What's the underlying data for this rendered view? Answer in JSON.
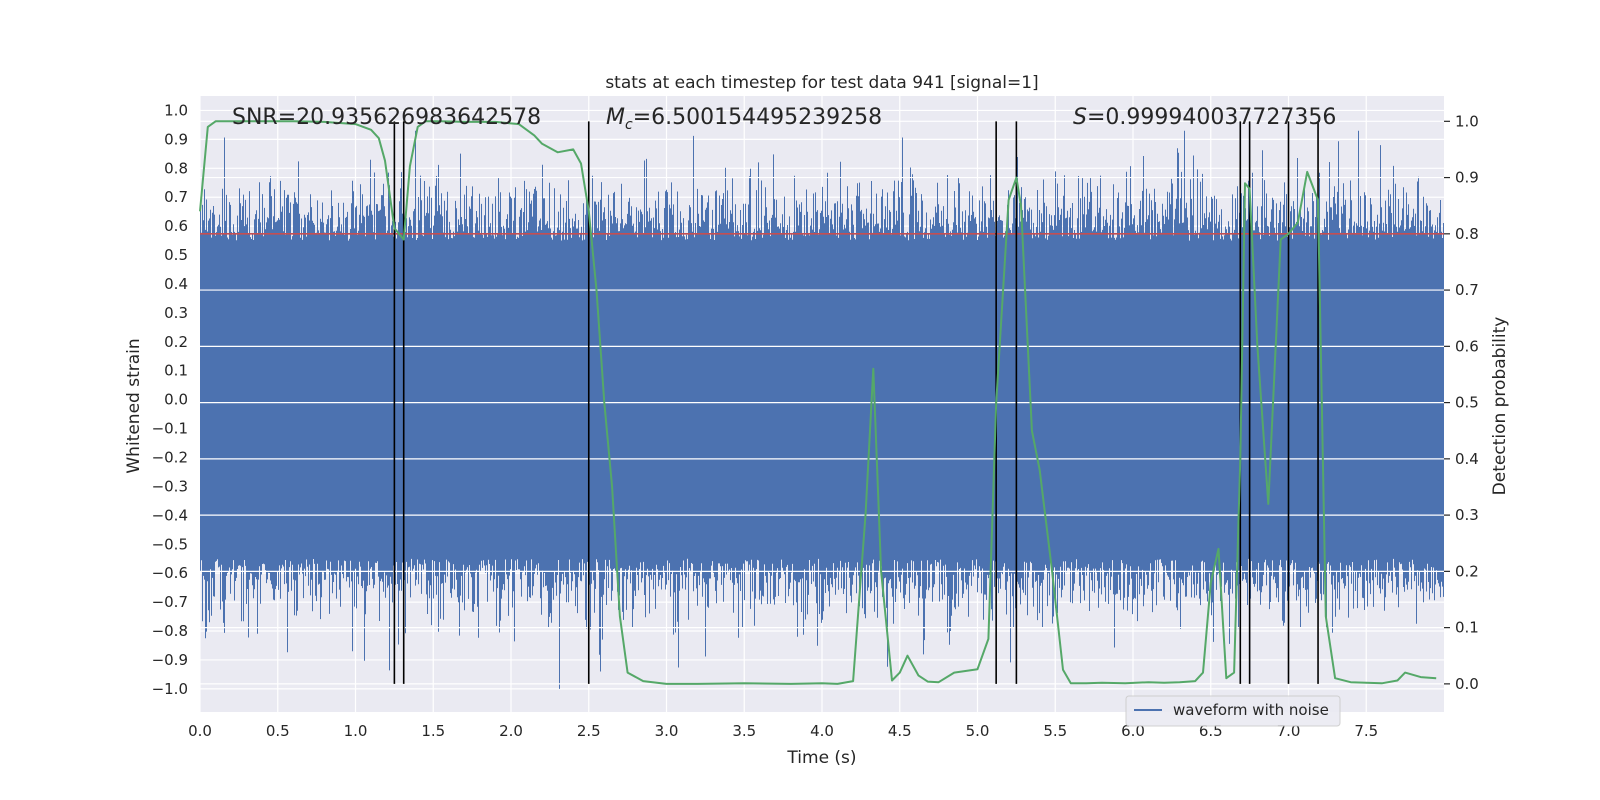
{
  "chart_data": {
    "type": "line",
    "title": "stats at each timestep for test data 941 [signal=1]",
    "xlabel": "Time (s)",
    "ylabel_left": "Whitened strain",
    "ylabel_right": "Detection probability",
    "xlim": [
      0.0,
      8.0
    ],
    "ylim_left": [
      -1.08,
      1.05
    ],
    "ylim_right": [
      -0.05,
      1.045
    ],
    "x_ticks": [
      0.0,
      0.5,
      1.0,
      1.5,
      2.0,
      2.5,
      3.0,
      3.5,
      4.0,
      4.5,
      5.0,
      5.5,
      6.0,
      6.5,
      7.0,
      7.5
    ],
    "x_tick_labels": [
      "0.0",
      "0.5",
      "1.0",
      "1.5",
      "2.0",
      "2.5",
      "3.0",
      "3.5",
      "4.0",
      "4.5",
      "5.0",
      "5.5",
      "6.0",
      "6.5",
      "7.0",
      "7.5"
    ],
    "y_left_ticks": [
      1.0,
      0.9,
      0.8,
      0.7,
      0.6,
      0.5,
      0.4,
      0.3,
      0.2,
      0.1,
      0.0,
      -0.1,
      -0.2,
      -0.3,
      -0.4,
      -0.5,
      -0.6,
      -0.7,
      -0.8,
      -0.9,
      -1.0
    ],
    "y_left_tick_labels": [
      "1.0",
      "0.9",
      "0.8",
      "0.7",
      "0.6",
      "0.5",
      "0.4",
      "0.3",
      "0.2",
      "0.1",
      "0.0",
      "−0.1",
      "−0.2",
      "−0.3",
      "−0.4",
      "−0.5",
      "−0.6",
      "−0.7",
      "−0.8",
      "−0.9",
      "−1.0"
    ],
    "y_right_ticks": [
      1.0,
      0.9,
      0.8,
      0.7,
      0.6,
      0.5,
      0.4,
      0.3,
      0.2,
      0.1,
      0.0
    ],
    "y_right_tick_labels": [
      "1.0",
      "0.9",
      "0.8",
      "0.7",
      "0.6",
      "0.5",
      "0.4",
      "0.3",
      "0.2",
      "0.1",
      "0.0"
    ],
    "annotations": {
      "snr": "SNR=20.935626983642578",
      "mc_symbol": "M",
      "mc_subscript": "c",
      "mc_value": "=6.500154495239258",
      "s_symbol": "S",
      "s_value": "=0.999940037727356"
    },
    "threshold_line": {
      "axis": "right",
      "value": 0.8,
      "color": "#c44e52"
    },
    "vertical_lines_x": [
      1.25,
      1.31,
      2.5,
      5.12,
      5.25,
      6.69,
      6.75,
      7.0,
      7.19
    ],
    "legend": {
      "label": "waveform with noise",
      "location": "lower-right"
    },
    "waveform": {
      "name": "waveform with noise",
      "axis": "left",
      "color": "#4c72b0",
      "core_band": [
        -0.42,
        0.35
      ],
      "typical_extent": [
        -0.55,
        0.55
      ],
      "max_spike": 0.93,
      "min_spike": -1.0
    },
    "series": [
      {
        "name": "detection probability",
        "axis": "right",
        "color": "#55a868",
        "x": [
          0.0,
          0.05,
          0.1,
          0.2,
          0.4,
          0.6,
          0.8,
          1.0,
          1.1,
          1.15,
          1.19,
          1.25,
          1.31,
          1.35,
          1.4,
          1.45,
          1.55,
          1.7,
          1.9,
          2.05,
          2.15,
          2.2,
          2.3,
          2.4,
          2.45,
          2.5,
          2.55,
          2.6,
          2.65,
          2.7,
          2.75,
          2.85,
          3.0,
          3.2,
          3.5,
          3.8,
          4.0,
          4.1,
          4.2,
          4.28,
          4.33,
          4.38,
          4.45,
          4.5,
          4.55,
          4.62,
          4.68,
          4.75,
          4.85,
          5.0,
          5.07,
          5.12,
          5.2,
          5.25,
          5.28,
          5.35,
          5.4,
          5.48,
          5.55,
          5.6,
          5.7,
          5.8,
          5.95,
          6.1,
          6.2,
          6.3,
          6.4,
          6.45,
          6.5,
          6.55,
          6.6,
          6.65,
          6.69,
          6.72,
          6.75,
          6.8,
          6.87,
          6.95,
          7.0,
          7.06,
          7.12,
          7.19,
          7.24,
          7.3,
          7.4,
          7.6,
          7.7,
          7.75,
          7.85,
          7.95
        ],
        "values": [
          0.84,
          0.99,
          1.0,
          1.0,
          1.0,
          1.0,
          0.999,
          0.995,
          0.985,
          0.97,
          0.93,
          0.81,
          0.79,
          0.92,
          0.99,
          1.0,
          1.0,
          0.999,
          0.999,
          0.995,
          0.975,
          0.96,
          0.945,
          0.95,
          0.925,
          0.84,
          0.7,
          0.5,
          0.35,
          0.12,
          0.02,
          0.005,
          0.0,
          0.0,
          0.001,
          0.0,
          0.001,
          0.0,
          0.005,
          0.3,
          0.56,
          0.2,
          0.006,
          0.02,
          0.05,
          0.015,
          0.004,
          0.003,
          0.02,
          0.026,
          0.08,
          0.5,
          0.86,
          0.9,
          0.85,
          0.45,
          0.38,
          0.2,
          0.025,
          0.001,
          0.001,
          0.002,
          0.001,
          0.003,
          0.002,
          0.003,
          0.005,
          0.02,
          0.18,
          0.24,
          0.01,
          0.02,
          0.4,
          0.89,
          0.88,
          0.6,
          0.32,
          0.79,
          0.8,
          0.82,
          0.91,
          0.86,
          0.12,
          0.01,
          0.003,
          0.001,
          0.006,
          0.02,
          0.012,
          0.01
        ]
      }
    ]
  }
}
